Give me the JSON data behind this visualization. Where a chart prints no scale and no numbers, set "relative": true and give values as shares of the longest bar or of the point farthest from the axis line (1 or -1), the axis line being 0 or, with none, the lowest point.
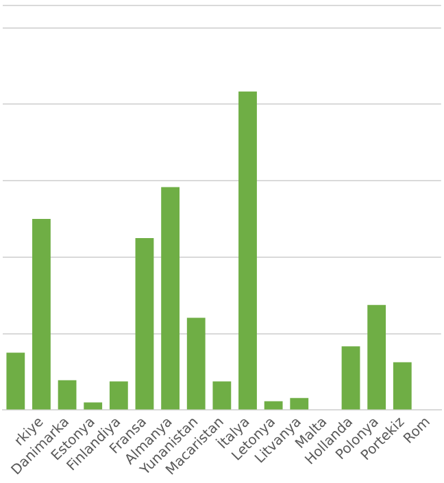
{
  "chart_data": {
    "type": "bar",
    "relative": true,
    "grid": "y",
    "legend": false,
    "color": "#6fae45",
    "categories": [
      null,
      "rkiye",
      "Danimarka",
      "Estonya",
      "Finlandiya",
      "Fransa",
      "Almanya",
      "Yunanistan",
      "Macaristan",
      "İtalya",
      "Letonya",
      "Litvanya",
      "Malta",
      "Hollanda",
      "Polonya",
      "Portekiz",
      "Rom"
    ],
    "values": [
      0.18,
      0.6,
      0.094,
      0.024,
      0.09,
      0.54,
      0.7,
      0.29,
      0.09,
      1,
      0.028,
      0.038,
      0,
      0.2,
      0.33,
      0.15,
      null
    ]
  }
}
